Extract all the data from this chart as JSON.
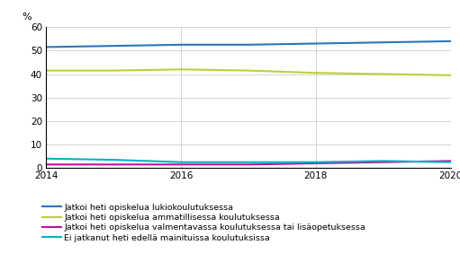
{
  "years": [
    2014,
    2015,
    2016,
    2017,
    2018,
    2019,
    2020
  ],
  "series": [
    {
      "label": "Jatkoi heti opiskelua lukiokoulutuksessa",
      "color": "#2E75B6",
      "values": [
        51.5,
        52.0,
        52.5,
        52.5,
        53.0,
        53.5,
        54.0
      ]
    },
    {
      "label": "Jatkoi heti opiskelua ammatillisessa koulutuksessa",
      "color": "#BFCE3C",
      "values": [
        41.5,
        41.5,
        42.0,
        41.5,
        40.5,
        40.0,
        39.5
      ]
    },
    {
      "label": "Jatkoi heti opiskelua valmentavassa koulutuksessa tai lisäopetuksessa",
      "color": "#BE10A0",
      "values": [
        1.5,
        1.5,
        1.5,
        1.5,
        2.0,
        2.5,
        3.0
      ]
    },
    {
      "label": "Ei jatkanut heti edellä mainituissa koulutuksissa",
      "color": "#00B4BE",
      "values": [
        4.0,
        3.5,
        2.5,
        2.5,
        2.5,
        3.0,
        2.5
      ]
    }
  ],
  "ylabel": "%",
  "ylim": [
    0,
    60
  ],
  "yticks": [
    0,
    10,
    20,
    30,
    40,
    50,
    60
  ],
  "xticks": [
    2014,
    2016,
    2018,
    2020
  ],
  "xlim": [
    2014,
    2020
  ],
  "grid_color": "#CCCCCC",
  "background_color": "#FFFFFF",
  "linewidth": 1.5
}
